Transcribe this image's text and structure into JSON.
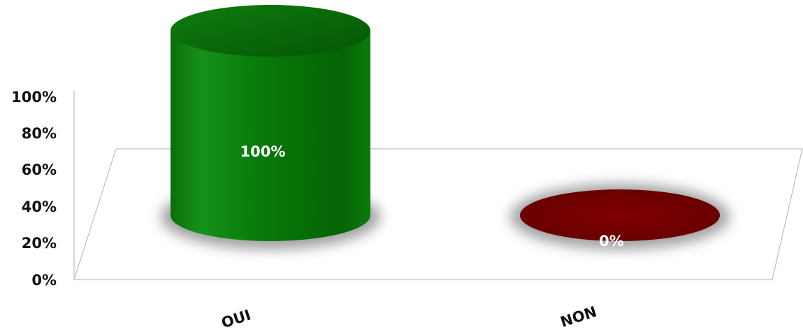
{
  "chart_data": {
    "type": "bar",
    "style": "3d-cylinder",
    "categories": [
      "OUI",
      "NON"
    ],
    "values": [
      100,
      0
    ],
    "data_labels": [
      "100%",
      "0%"
    ],
    "y_ticks": [
      "0%",
      "20%",
      "40%",
      "60%",
      "80%",
      "100%"
    ],
    "ylim": [
      0,
      100
    ],
    "title": "",
    "xlabel": "",
    "ylabel": "",
    "grid": false,
    "legend": "none",
    "colors": {
      "OUI": "#0b7a0b",
      "NON": "#7a0000"
    }
  }
}
